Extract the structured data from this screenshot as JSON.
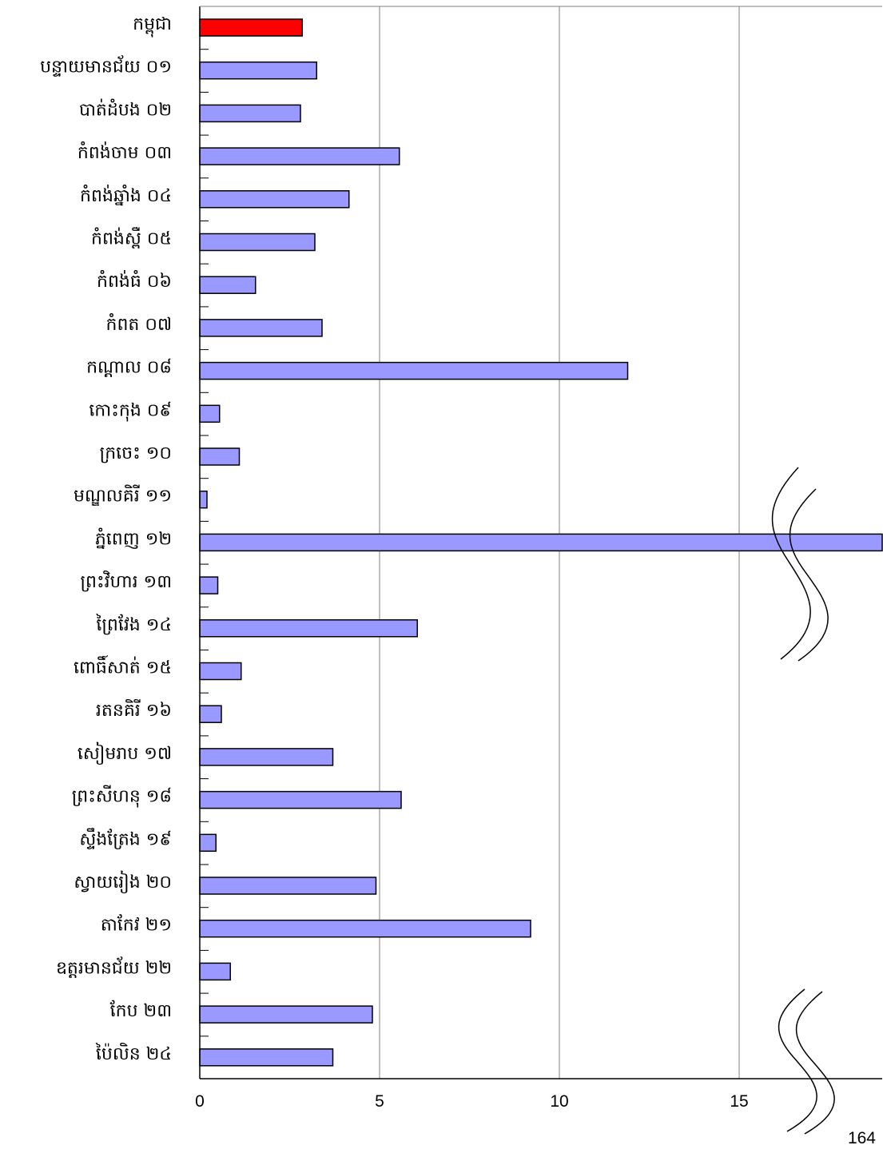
{
  "chart_data": {
    "type": "bar",
    "orientation": "horizontal",
    "categories": [
      "កម្ពុជា",
      "បន្ទាយមានជ័យ ០១",
      "បាត់ដំបង ០២",
      "កំពង់ចាម ០៣",
      "កំពង់ឆ្នាំង ០៤",
      "កំពង់ស្ពឺ ០៥",
      "កំពង់ធំ ០៦",
      "កំពត ០៧",
      "កណ្ដាល ០៨",
      "កោះកុង ០៩",
      "ក្រចេះ ១០",
      "មណ្ឌលគិរី ១១",
      "ភ្នំពេញ ១២",
      "ព្រះវិហារ ១៣",
      "ព្រៃវែង ១៤",
      "ពោធិ៍សាត់ ១៥",
      "រតនគិរី ១៦",
      "សៀមរាប ១៧",
      "ព្រះសីហនុ ១៨",
      "ស្ទឹងត្រែង ១៩",
      "ស្វាយរៀង ២០",
      "តាកែវ ២១",
      "ឧត្តរមានជ័យ ២២",
      "កែប ២៣",
      "ប៉ៃលិន ២៤"
    ],
    "values": [
      2.85,
      3.25,
      2.8,
      5.55,
      4.15,
      3.2,
      1.55,
      3.4,
      11.9,
      0.55,
      1.1,
      0.2,
      164,
      0.5,
      6.05,
      1.15,
      0.6,
      3.7,
      5.6,
      0.45,
      4.9,
      9.2,
      0.85,
      4.8,
      3.7
    ],
    "highlight_index": 0,
    "colors": {
      "highlight": "#ff0000",
      "bar": "#9999ff",
      "outline": "#000000",
      "grid": "#808080"
    },
    "xlim": [
      0,
      19
    ],
    "xticks": [
      0,
      5,
      10,
      15
    ],
    "xtick_labels": [
      "0",
      "5",
      "10",
      "15"
    ],
    "grid": true,
    "axis_break": true,
    "break_value_label": "164"
  }
}
